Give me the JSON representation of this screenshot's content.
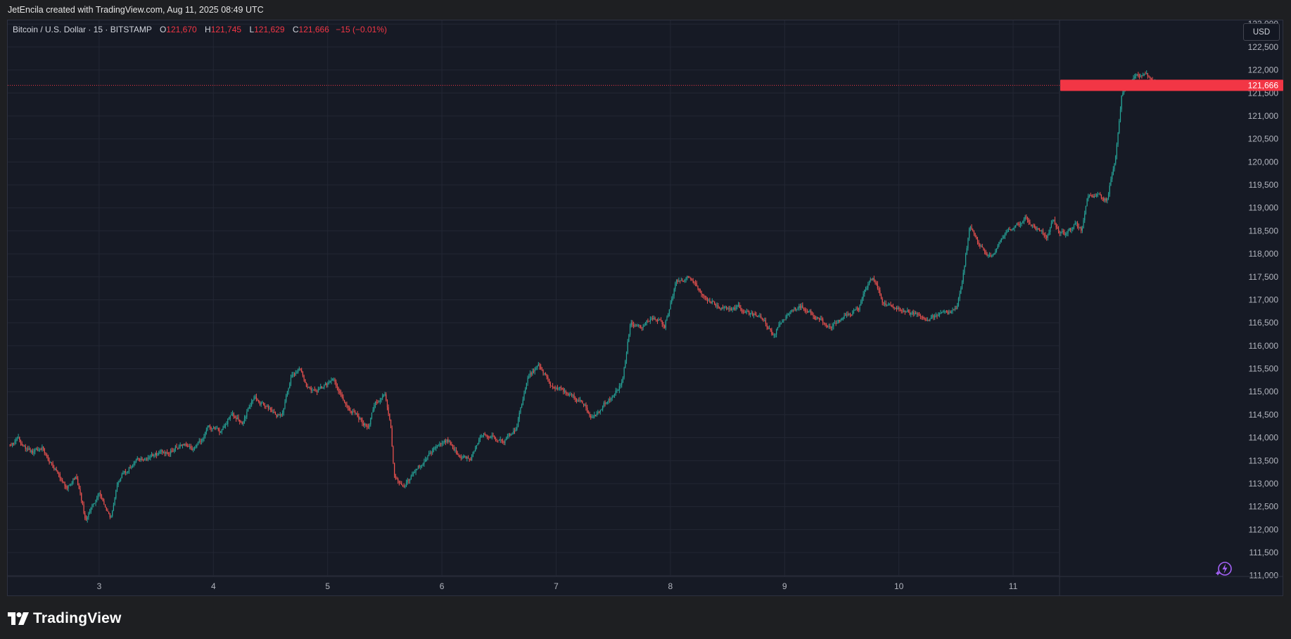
{
  "header": {
    "credit": "JetEncila created with TradingView.com, Aug 11, 2025 08:49 UTC"
  },
  "legend": {
    "symbol": "Bitcoin / U.S. Dollar · 15 · BITSTAMP",
    "open_label": "O",
    "open": "121,670",
    "high_label": "H",
    "high": "121,745",
    "low_label": "L",
    "low": "121,629",
    "close_label": "C",
    "close": "121,666",
    "change": "−15 (−0.01%)"
  },
  "price_scale": {
    "currency_button": "USD",
    "last_price_badge": "121,666"
  },
  "footer": {
    "brand": "TradingView"
  },
  "icons": {
    "logo": "tradingview-logo-icon",
    "assistant": "lightning-assistant-icon"
  },
  "colors": {
    "up": "#26a69a",
    "down": "#ef5350",
    "background": "#161a25",
    "last_price": "#f23645"
  },
  "chart_data": {
    "type": "candlestick",
    "symbol": "BTCUSD",
    "exchange": "BITSTAMP",
    "interval": "15",
    "x_tick_labels": [
      "3",
      "4",
      "5",
      "6",
      "7",
      "8",
      "9",
      "10",
      "11"
    ],
    "x_range_days": [
      2.2,
      11.4
    ],
    "y_ticks": [
      111000,
      111500,
      112000,
      112500,
      113000,
      113500,
      114000,
      114500,
      115000,
      115500,
      116000,
      116500,
      117000,
      117500,
      118000,
      118500,
      119000,
      119500,
      120000,
      120500,
      121000,
      121500,
      122000,
      122500,
      123000
    ],
    "ylim": [
      110980,
      123080
    ],
    "grid": true,
    "last_price": 121666,
    "price_path": [
      [
        2.22,
        113850
      ],
      [
        2.3,
        113950
      ],
      [
        2.42,
        113650
      ],
      [
        2.5,
        113800
      ],
      [
        2.6,
        113350
      ],
      [
        2.72,
        112900
      ],
      [
        2.8,
        113200
      ],
      [
        2.88,
        112200
      ],
      [
        2.95,
        112600
      ],
      [
        3.0,
        112800
      ],
      [
        3.05,
        112500
      ],
      [
        3.1,
        112300
      ],
      [
        3.15,
        112900
      ],
      [
        3.2,
        113200
      ],
      [
        3.3,
        113450
      ],
      [
        3.45,
        113600
      ],
      [
        3.6,
        113700
      ],
      [
        3.75,
        113900
      ],
      [
        3.85,
        113750
      ],
      [
        3.95,
        114250
      ],
      [
        4.05,
        114100
      ],
      [
        4.15,
        114500
      ],
      [
        4.25,
        114350
      ],
      [
        4.35,
        114850
      ],
      [
        4.45,
        114700
      ],
      [
        4.55,
        114500
      ],
      [
        4.6,
        114450
      ],
      [
        4.68,
        115300
      ],
      [
        4.75,
        115500
      ],
      [
        4.85,
        115000
      ],
      [
        4.95,
        115100
      ],
      [
        5.05,
        115250
      ],
      [
        5.15,
        114700
      ],
      [
        5.25,
        114500
      ],
      [
        5.35,
        114200
      ],
      [
        5.42,
        114800
      ],
      [
        5.5,
        114900
      ],
      [
        5.55,
        114300
      ],
      [
        5.58,
        113200
      ],
      [
        5.65,
        112900
      ],
      [
        5.75,
        113200
      ],
      [
        5.85,
        113500
      ],
      [
        5.95,
        113800
      ],
      [
        6.05,
        113950
      ],
      [
        6.15,
        113600
      ],
      [
        6.25,
        113500
      ],
      [
        6.35,
        114100
      ],
      [
        6.45,
        114050
      ],
      [
        6.55,
        113950
      ],
      [
        6.65,
        114200
      ],
      [
        6.75,
        115300
      ],
      [
        6.85,
        115600
      ],
      [
        6.95,
        115150
      ],
      [
        7.05,
        115050
      ],
      [
        7.15,
        114900
      ],
      [
        7.25,
        114700
      ],
      [
        7.3,
        114400
      ],
      [
        7.4,
        114650
      ],
      [
        7.5,
        114950
      ],
      [
        7.58,
        115200
      ],
      [
        7.65,
        116500
      ],
      [
        7.75,
        116400
      ],
      [
        7.85,
        116600
      ],
      [
        7.95,
        116450
      ],
      [
        8.05,
        117400
      ],
      [
        8.15,
        117500
      ],
      [
        8.2,
        117350
      ],
      [
        8.3,
        117100
      ],
      [
        8.4,
        116900
      ],
      [
        8.5,
        116750
      ],
      [
        8.6,
        116850
      ],
      [
        8.7,
        116700
      ],
      [
        8.8,
        116650
      ],
      [
        8.9,
        116200
      ],
      [
        8.98,
        116600
      ],
      [
        9.05,
        116700
      ],
      [
        9.15,
        116850
      ],
      [
        9.25,
        116650
      ],
      [
        9.35,
        116500
      ],
      [
        9.45,
        116450
      ],
      [
        9.55,
        116700
      ],
      [
        9.65,
        116800
      ],
      [
        9.75,
        117500
      ],
      [
        9.8,
        117400
      ],
      [
        9.85,
        117000
      ],
      [
        9.95,
        116800
      ],
      [
        10.05,
        116750
      ],
      [
        10.15,
        116650
      ],
      [
        10.25,
        116600
      ],
      [
        10.35,
        116650
      ],
      [
        10.45,
        116700
      ],
      [
        10.5,
        116800
      ],
      [
        10.55,
        117300
      ],
      [
        10.62,
        118600
      ],
      [
        10.7,
        118200
      ],
      [
        10.8,
        117900
      ],
      [
        10.9,
        118300
      ],
      [
        11.0,
        118600
      ],
      [
        11.1,
        118800
      ],
      [
        11.2,
        118550
      ],
      [
        11.3,
        118350
      ],
      [
        11.35,
        118700
      ],
      [
        11.45,
        118400
      ],
      [
        11.55,
        118650
      ],
      [
        11.6,
        118500
      ],
      [
        11.65,
        119200
      ],
      [
        11.75,
        119300
      ],
      [
        11.82,
        119150
      ],
      [
        11.9,
        120200
      ],
      [
        11.95,
        121500
      ],
      [
        12.05,
        121800
      ],
      [
        12.15,
        121950
      ],
      [
        12.22,
        121750
      ],
      [
        12.3,
        121666
      ]
    ]
  }
}
